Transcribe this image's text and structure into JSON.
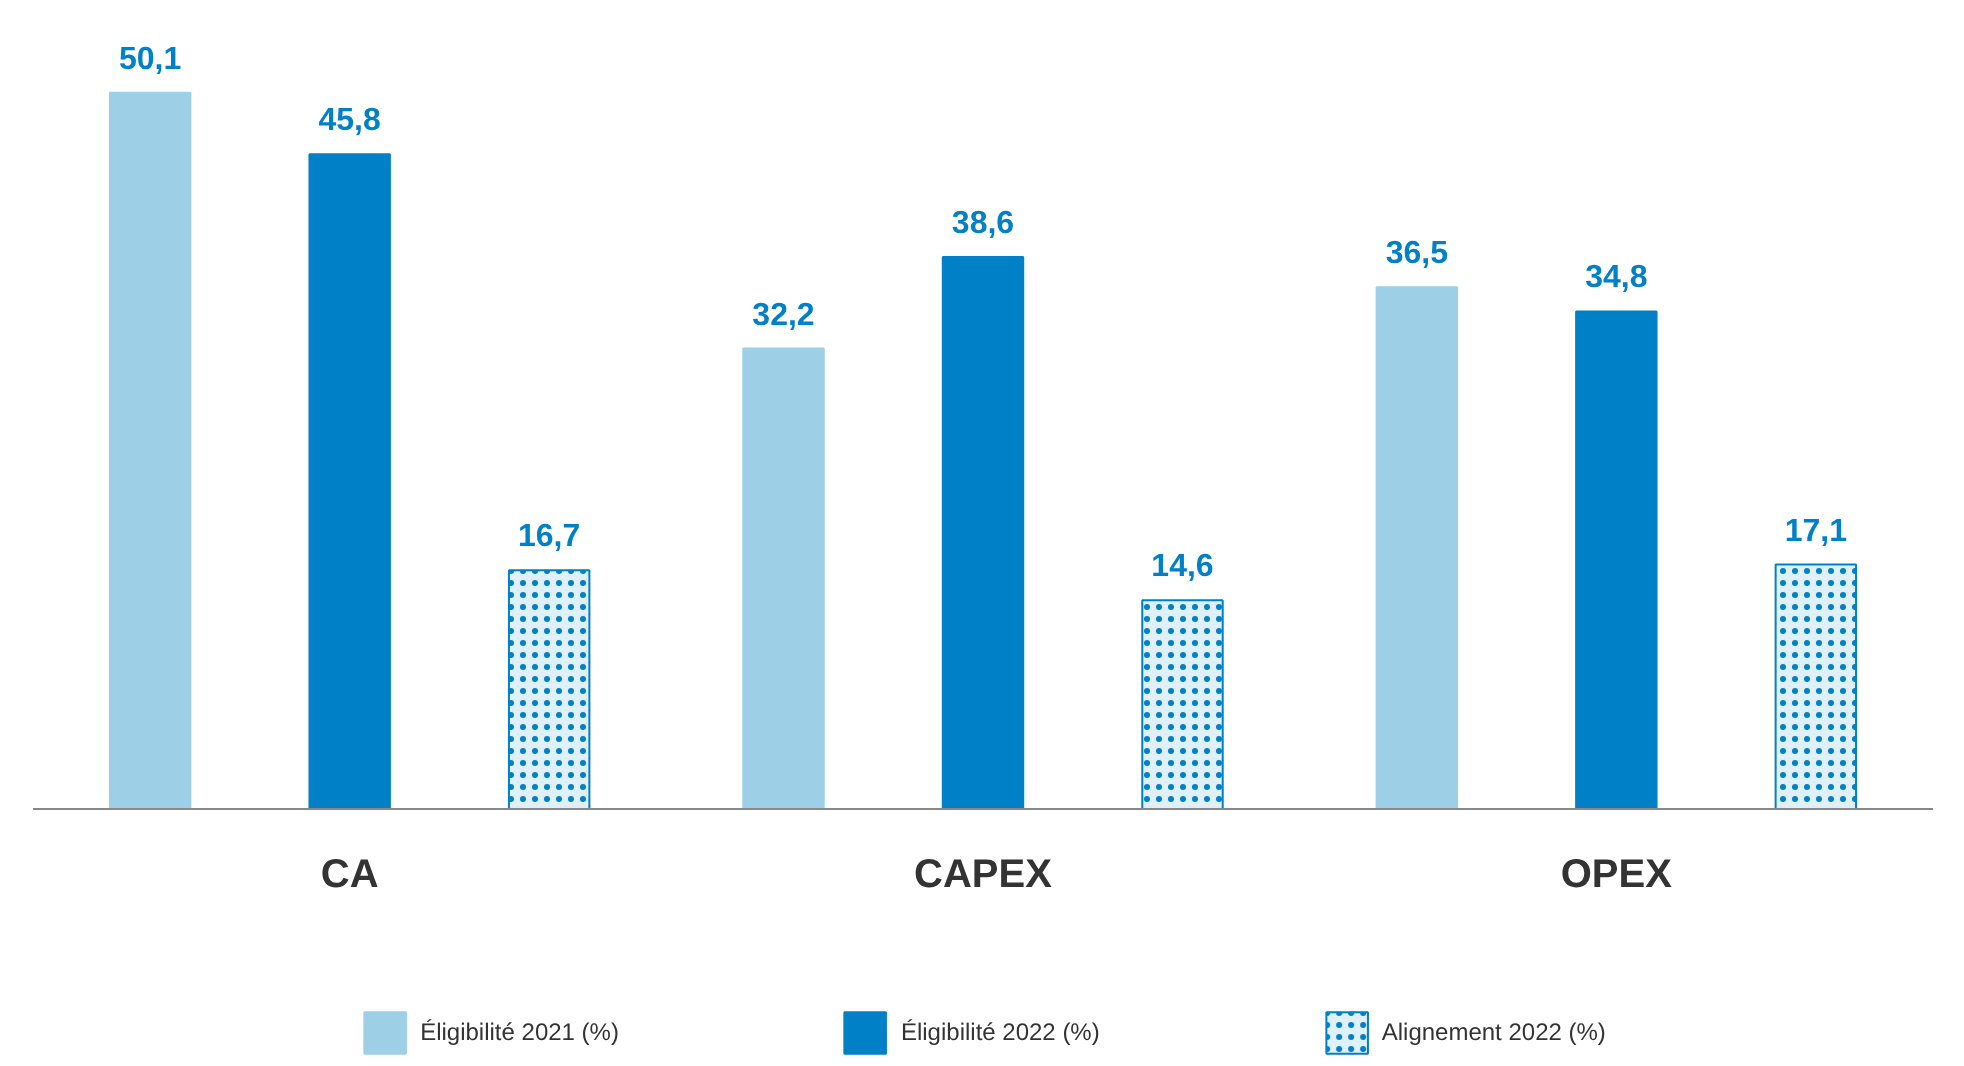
{
  "chart_data": {
    "type": "bar",
    "categories": [
      "CA",
      "CAPEX",
      "OPEX"
    ],
    "series": [
      {
        "name": "Éligibilité 2021 (%)",
        "color": "#9dcfe7",
        "values": [
          50.1,
          32.2,
          36.5
        ],
        "value_labels": [
          "50,1",
          "32,2",
          "36,5"
        ]
      },
      {
        "name": "Éligibilité 2022 (%)",
        "color": "#0080c6",
        "values": [
          45.8,
          38.6,
          34.8
        ],
        "value_labels": [
          "45,8",
          "38,6",
          "34,8"
        ]
      },
      {
        "name": "Alignement 2022 (%)",
        "color": "#0080c6",
        "values": [
          16.7,
          14.6,
          17.1
        ],
        "value_labels": [
          "16,7",
          "14,6",
          "17,1"
        ]
      }
    ],
    "legend": "bottom"
  }
}
